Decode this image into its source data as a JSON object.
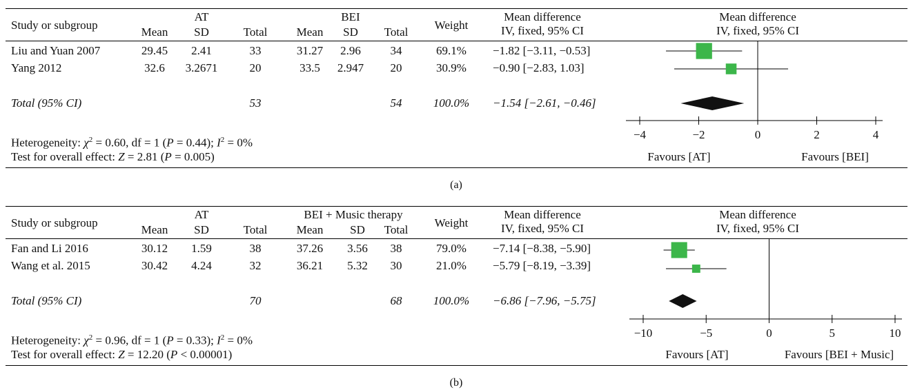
{
  "colors": {
    "box": "#3cb64a",
    "diamond": "#111111",
    "line": "#000000"
  },
  "headers": {
    "study": "Study or subgroup",
    "mean": "Mean",
    "sd": "SD",
    "total": "Total",
    "weight": "Weight",
    "md1": "Mean difference",
    "md2": "IV, fixed, 95% CI",
    "plot1": "Mean difference",
    "plot2": "IV, fixed, 95% CI"
  },
  "chart_data": [
    {
      "type": "forest",
      "caption": "(a)",
      "group1": "AT",
      "group2": "BEI",
      "studies": [
        {
          "name": "Liu and Yuan 2007",
          "m1": "29.45",
          "sd1": "2.41",
          "n1": "33",
          "m2": "31.27",
          "sd2": "2.96",
          "n2": "34",
          "weight": "69.1%",
          "ci_text": "−1.82 [−3.11, −0.53]",
          "md": -1.82,
          "lo": -3.11,
          "hi": -0.53,
          "w": 69.1
        },
        {
          "name": "Yang 2012",
          "m1": "32.6",
          "sd1": "3.2671",
          "n1": "20",
          "m2": "33.5",
          "sd2": "2.947",
          "n2": "20",
          "weight": "30.9%",
          "ci_text": "−0.90 [−2.83, 1.03]",
          "md": -0.9,
          "lo": -2.83,
          "hi": 1.03,
          "w": 30.9
        }
      ],
      "total": {
        "label": "Total (95% CI)",
        "n1": "53",
        "n2": "54",
        "weight": "100.0%",
        "ci_text": "−1.54 [−2.61, −0.46]",
        "md": -1.54,
        "lo": -2.61,
        "hi": -0.46
      },
      "heterogeneity": {
        "lead": "Heterogeneity: ",
        "chi": "χ",
        "chi_exp": "2",
        "mid": " = 0.60, df = 1 (",
        "p": "P",
        "p_val": " = 0.44); ",
        "i": "I",
        "i_exp": "2",
        "tail": " = 0%"
      },
      "overall": {
        "lead": "Test for overall effect: ",
        "z": "Z",
        "z_val": " = 2.81 (",
        "p": "P",
        "p_val": " = 0.005)"
      },
      "xlim": [
        -4,
        4
      ],
      "ticks": [
        "−4",
        "−2",
        "0",
        "2",
        "4"
      ],
      "tick_values": [
        -4,
        -2,
        0,
        2,
        4
      ],
      "favours_left": "Favours [AT]",
      "favours_right": "Favours [BEI]"
    },
    {
      "type": "forest",
      "caption": "(b)",
      "group1": "AT",
      "group2": "BEI + Music therapy",
      "studies": [
        {
          "name": "Fan and Li 2016",
          "m1": "30.12",
          "sd1": "1.59",
          "n1": "38",
          "m2": "37.26",
          "sd2": "3.56",
          "n2": "38",
          "weight": "79.0%",
          "ci_text": "−7.14 [−8.38, −5.90]",
          "md": -7.14,
          "lo": -8.38,
          "hi": -5.9,
          "w": 79.0
        },
        {
          "name": "Wang et al. 2015",
          "m1": "30.42",
          "sd1": "4.24",
          "n1": "32",
          "m2": "36.21",
          "sd2": "5.32",
          "n2": "30",
          "weight": "21.0%",
          "ci_text": "−5.79 [−8.19, −3.39]",
          "md": -5.79,
          "lo": -8.19,
          "hi": -3.39,
          "w": 21.0
        }
      ],
      "total": {
        "label": "Total (95% CI)",
        "n1": "70",
        "n2": "68",
        "weight": "100.0%",
        "ci_text": "−6.86 [−7.96, −5.75]",
        "md": -6.86,
        "lo": -7.96,
        "hi": -5.75
      },
      "heterogeneity": {
        "lead": "Heterogeneity: ",
        "chi": "χ",
        "chi_exp": "2",
        "mid": " = 0.96, df = 1 (",
        "p": "P",
        "p_val": " = 0.33); ",
        "i": "I",
        "i_exp": "2",
        "tail": " = 0%"
      },
      "overall": {
        "lead": "Test for overall effect: ",
        "z": "Z",
        "z_val": " = 12.20 (",
        "p": "P",
        "p_val": " < 0.00001)"
      },
      "xlim": [
        -10,
        10
      ],
      "ticks": [
        "−10",
        "−5",
        "0",
        "5",
        "10"
      ],
      "tick_values": [
        -10,
        -5,
        0,
        5,
        10
      ],
      "favours_left": "Favours [AT]",
      "favours_right": "Favours [BEI + Music]"
    }
  ]
}
